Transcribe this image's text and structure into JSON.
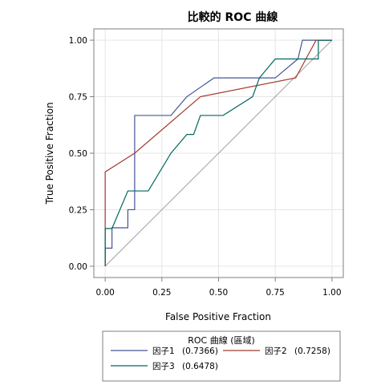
{
  "chart_data": {
    "type": "line",
    "title": "比較的 ROC 曲線",
    "xlabel": "False Positive Fraction",
    "ylabel": "True Positive Fraction",
    "xlim": [
      -0.05,
      1.05
    ],
    "ylim": [
      -0.05,
      1.05
    ],
    "x_ticks": [
      0.0,
      0.25,
      0.5,
      0.75,
      1.0
    ],
    "y_ticks": [
      0.0,
      0.25,
      0.5,
      0.75,
      1.0
    ],
    "x_tick_labels": [
      "0.00",
      "0.25",
      "0.50",
      "0.75",
      "1.00"
    ],
    "y_tick_labels": [
      "0.00",
      "0.25",
      "0.50",
      "0.75",
      "1.00"
    ],
    "grid": true,
    "reference_line": {
      "x": [
        0,
        1
      ],
      "y": [
        0,
        1
      ],
      "color": "#a0a0a0"
    },
    "legend": {
      "title": "ROC 曲線 (區域)",
      "placement": "bottom"
    },
    "series": [
      {
        "name": "因子1",
        "auc_label": "(0.7366)",
        "color": "#445694",
        "step": true,
        "x": [
          0,
          0,
          0.03,
          0.03,
          0.1,
          0.1,
          0.13,
          0.13,
          0.29,
          0.36,
          0.48,
          0.75,
          0.85,
          0.87,
          1.0
        ],
        "y": [
          0,
          0.08,
          0.08,
          0.17,
          0.17,
          0.25,
          0.25,
          0.667,
          0.667,
          0.75,
          0.833,
          0.833,
          0.917,
          1.0,
          1.0
        ]
      },
      {
        "name": "因子2",
        "auc_label": "(0.7258)",
        "color": "#a23a2e",
        "step": false,
        "x": [
          0,
          0,
          0.13,
          0.42,
          0.84,
          0.93,
          1.0
        ],
        "y": [
          0,
          0.417,
          0.5,
          0.75,
          0.833,
          1.0,
          1.0
        ]
      },
      {
        "name": "因子3",
        "auc_label": "(0.6478)",
        "color": "#01665e",
        "step": false,
        "x": [
          0,
          0,
          0.03,
          0.1,
          0.19,
          0.29,
          0.36,
          0.39,
          0.42,
          0.52,
          0.65,
          0.68,
          0.75,
          0.94,
          0.94,
          1.0
        ],
        "y": [
          0,
          0.167,
          0.167,
          0.333,
          0.333,
          0.5,
          0.583,
          0.583,
          0.667,
          0.667,
          0.75,
          0.833,
          0.917,
          0.917,
          1.0,
          1.0
        ]
      }
    ]
  }
}
